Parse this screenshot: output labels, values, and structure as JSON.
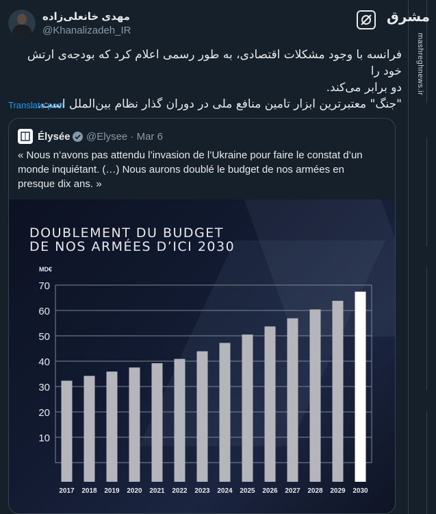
{
  "author": {
    "display_name": "مهدی خانعلی‌زاده",
    "handle": "@Khanalizadeh_IR"
  },
  "tweet": {
    "text_line1": "فرانسه با وجود مشکلات اقتصادی، به طور رسمی اعلام کرد که بودجه‌ی ارتش خود را",
    "text_line2": "دو برابر می‌کند.",
    "text_line3": "\"جنگ\" معتبرترین ابزار تامین منافع ملی در دوران گذار نظام بین‌الملل است.",
    "translate_label": "Translate post"
  },
  "watermark": {
    "logo_text": "مشرق",
    "site": "mashreghnews.ir"
  },
  "quote": {
    "name": "Élysée",
    "handle": "@Elysee",
    "date": "Mar 6",
    "text": "« Nous n’avons pas attendu l’invasion de l’Ukraine pour faire le constat d’un monde inquiétant. (…) Nous aurons doublé le budget de nos armées en presque dix ans. »"
  },
  "chart_data": {
    "type": "bar",
    "title_line1": "DOUBLEMENT DU BUDGET",
    "title_line2": "DE NOS ARMÉES D’ICI 2030",
    "ylabel": "MD€",
    "categories": [
      "2017",
      "2018",
      "2019",
      "2020",
      "2021",
      "2022",
      "2023",
      "2024",
      "2025",
      "2026",
      "2027",
      "2028",
      "2029",
      "2030"
    ],
    "values": [
      32.3,
      34.2,
      35.9,
      37.5,
      39.2,
      40.9,
      43.9,
      47.2,
      50.5,
      53.7,
      56.9,
      60.4,
      63.8,
      67.4
    ],
    "highlight_category": "2030",
    "yticks": [
      10,
      20,
      30,
      40,
      50,
      60,
      70
    ],
    "ylim": [
      0,
      70
    ],
    "grid": true,
    "colors": {
      "bar": "#b4b6bc",
      "highlight": "#ffffff",
      "grid": "#7f8796",
      "text": "#e8e8ee"
    }
  }
}
